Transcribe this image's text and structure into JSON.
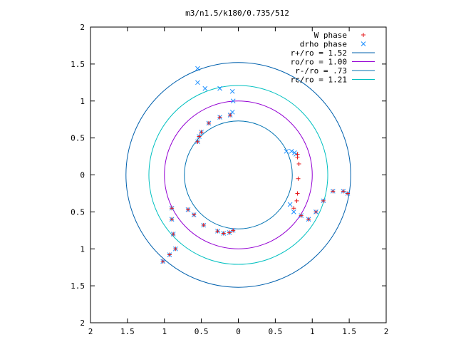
{
  "chart_data": {
    "type": "scatter",
    "title": "m3/n1.5/k180/0.735/512",
    "xlim": [
      -2,
      2
    ],
    "ylim": [
      -2,
      2
    ],
    "xticks": [
      {
        "value": -2,
        "label": "2"
      },
      {
        "value": -1.5,
        "label": "1.5"
      },
      {
        "value": -1,
        "label": "1"
      },
      {
        "value": -0.5,
        "label": "0.5"
      },
      {
        "value": 0,
        "label": "0"
      },
      {
        "value": 0.5,
        "label": "0.5"
      },
      {
        "value": 1,
        "label": "1"
      },
      {
        "value": 1.5,
        "label": "1.5"
      },
      {
        "value": 2,
        "label": "2"
      }
    ],
    "yticks": [
      {
        "value": 2,
        "label": "2"
      },
      {
        "value": 1.5,
        "label": "1.5"
      },
      {
        "value": 1,
        "label": "1"
      },
      {
        "value": 0.5,
        "label": "0.5"
      },
      {
        "value": 0,
        "label": "0"
      },
      {
        "value": -0.5,
        "label": "0.5"
      },
      {
        "value": -1,
        "label": "1"
      },
      {
        "value": -1.5,
        "label": "1.5"
      },
      {
        "value": -2,
        "label": "2"
      }
    ],
    "grid": false,
    "legend_position": "top-right",
    "circles": [
      {
        "name": "r+/ro = 1.52",
        "radius": 1.52,
        "color": "#0060ad"
      },
      {
        "name": "ro/ro = 1.00",
        "radius": 1.0,
        "color": "#9400d3"
      },
      {
        "name": "r-/ro = .73",
        "radius": 0.73,
        "color": "#0072b2"
      },
      {
        "name": "rc/ro = 1.21",
        "radius": 1.21,
        "color": "#00c0c0"
      }
    ],
    "series": [
      {
        "name": "W phase",
        "marker": "+",
        "color": "#e41a1c",
        "points": [
          [
            -0.55,
            0.45
          ],
          [
            -0.53,
            0.52
          ],
          [
            -0.5,
            0.58
          ],
          [
            -0.4,
            0.7
          ],
          [
            -0.25,
            0.78
          ],
          [
            -0.11,
            0.81
          ],
          [
            0.8,
            0.28
          ],
          [
            0.8,
            0.24
          ],
          [
            0.82,
            0.15
          ],
          [
            0.81,
            -0.05
          ],
          [
            0.8,
            -0.25
          ],
          [
            0.79,
            -0.35
          ],
          [
            -0.68,
            -0.47
          ],
          [
            -0.6,
            -0.54
          ],
          [
            -0.47,
            -0.68
          ],
          [
            -0.28,
            -0.76
          ],
          [
            -0.2,
            -0.79
          ],
          [
            -0.12,
            -0.78
          ],
          [
            -0.07,
            -0.75
          ],
          [
            -0.9,
            -0.45
          ],
          [
            -0.9,
            -0.6
          ],
          [
            -0.88,
            -0.8
          ],
          [
            -0.85,
            -1.0
          ],
          [
            -0.93,
            -1.08
          ],
          [
            -1.02,
            -1.17
          ],
          [
            0.75,
            -0.45
          ],
          [
            0.85,
            -0.55
          ],
          [
            0.95,
            -0.6
          ],
          [
            1.05,
            -0.5
          ],
          [
            1.15,
            -0.35
          ],
          [
            1.28,
            -0.22
          ],
          [
            1.42,
            -0.22
          ],
          [
            1.48,
            -0.25
          ]
        ]
      },
      {
        "name": "drho phase",
        "marker": "x",
        "color": "#1e90ff",
        "points": [
          [
            -0.55,
            1.44
          ],
          [
            -0.55,
            1.25
          ],
          [
            -0.45,
            1.17
          ],
          [
            -0.25,
            1.17
          ],
          [
            -0.08,
            1.13
          ],
          [
            -0.07,
            1.0
          ],
          [
            -0.08,
            0.85
          ],
          [
            -0.55,
            0.45
          ],
          [
            -0.53,
            0.52
          ],
          [
            -0.5,
            0.58
          ],
          [
            -0.4,
            0.7
          ],
          [
            -0.25,
            0.78
          ],
          [
            -0.11,
            0.81
          ],
          [
            0.65,
            0.32
          ],
          [
            0.72,
            0.32
          ],
          [
            0.76,
            0.3
          ],
          [
            0.78,
            0.28
          ],
          [
            0.7,
            -0.4
          ],
          [
            0.75,
            -0.5
          ],
          [
            0.85,
            -0.55
          ],
          [
            0.95,
            -0.6
          ],
          [
            1.05,
            -0.5
          ],
          [
            1.15,
            -0.35
          ],
          [
            1.28,
            -0.22
          ],
          [
            1.42,
            -0.22
          ],
          [
            1.48,
            -0.25
          ],
          [
            -0.68,
            -0.47
          ],
          [
            -0.6,
            -0.54
          ],
          [
            -0.47,
            -0.68
          ],
          [
            -0.28,
            -0.76
          ],
          [
            -0.2,
            -0.79
          ],
          [
            -0.12,
            -0.78
          ],
          [
            -0.07,
            -0.75
          ],
          [
            -0.9,
            -0.45
          ],
          [
            -0.9,
            -0.6
          ],
          [
            -0.88,
            -0.8
          ],
          [
            -0.85,
            -1.0
          ],
          [
            -0.93,
            -1.08
          ],
          [
            -1.02,
            -1.17
          ]
        ]
      }
    ]
  }
}
